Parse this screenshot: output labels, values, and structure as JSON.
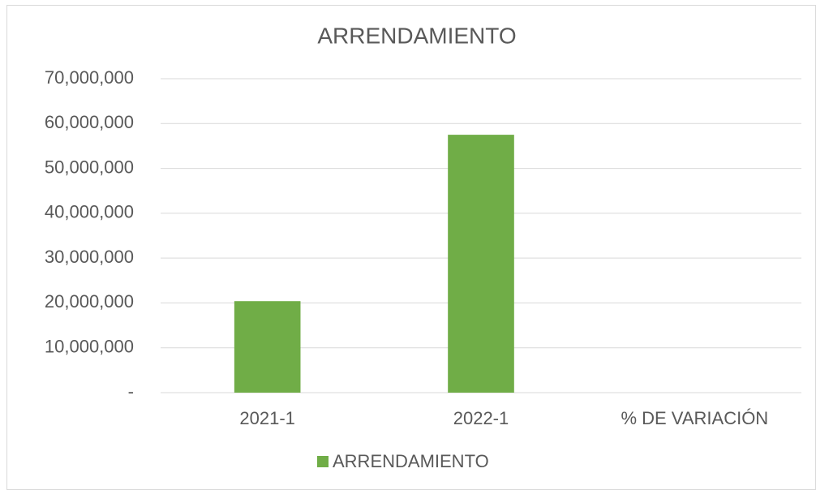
{
  "chart_data": {
    "type": "bar",
    "title": "ARRENDAMIENTO",
    "categories": [
      "2021-1",
      "2022-1",
      "%  DE VARIACIÓN"
    ],
    "series": [
      {
        "name": "ARRENDAMIENTO",
        "color": "#70ad47",
        "values": [
          20400000,
          57500000,
          0
        ]
      }
    ],
    "ylim": [
      0,
      70000000
    ],
    "yticks": [
      {
        "value": 0,
        "label": "-"
      },
      {
        "value": 10000000,
        "label": "10,000,000"
      },
      {
        "value": 20000000,
        "label": "20,000,000"
      },
      {
        "value": 30000000,
        "label": "30,000,000"
      },
      {
        "value": 40000000,
        "label": "40,000,000"
      },
      {
        "value": 50000000,
        "label": "50,000,000"
      },
      {
        "value": 60000000,
        "label": "60,000,000"
      },
      {
        "value": 70000000,
        "label": "70,000,000"
      }
    ],
    "grid": true,
    "legend": "bottom"
  }
}
